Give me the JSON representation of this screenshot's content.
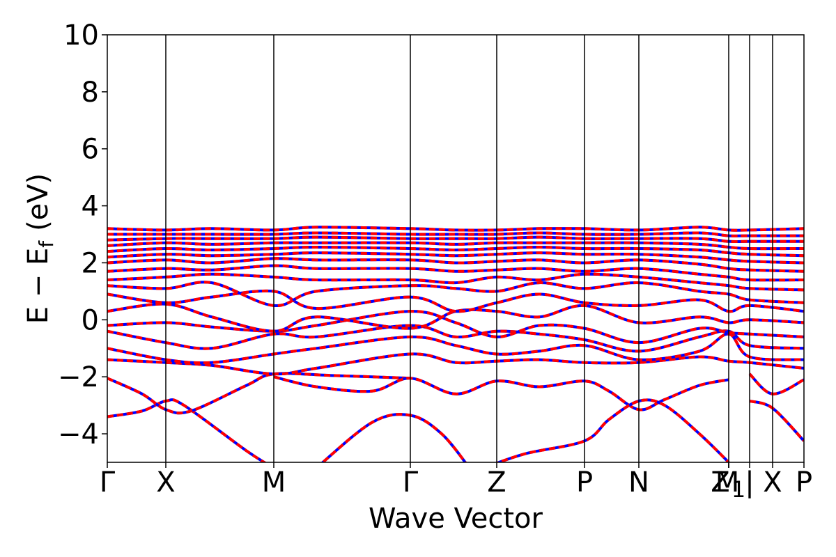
{
  "chart_data": {
    "type": "line",
    "title": "",
    "xlabel": "Wave Vector",
    "ylabel_main": "E − E",
    "ylabel_sub": "f",
    "ylabel_unit": "(eV)",
    "ylim": [
      -5,
      10
    ],
    "yticks": [
      -4,
      -2,
      0,
      2,
      4,
      6,
      8,
      10
    ],
    "ytick_labels": [
      "−4",
      "−2",
      "0",
      "2",
      "4",
      "6",
      "8",
      "10"
    ],
    "xlim": [
      0,
      1
    ],
    "kpoints": [
      {
        "label": "Γ",
        "x": 0.0
      },
      {
        "label": "X",
        "x": 0.084
      },
      {
        "label": "M",
        "x": 0.239
      },
      {
        "label": "Γ",
        "x": 0.435
      },
      {
        "label": "Z",
        "x": 0.559
      },
      {
        "label": "P",
        "x": 0.685
      },
      {
        "label": "N",
        "x": 0.763
      },
      {
        "label": "Z",
        "x": 0.892
      },
      {
        "label": "M",
        "x": 0.892
      },
      {
        "label": "1",
        "x": 0.892
      },
      {
        "label": "|",
        "x": 0.922
      },
      {
        "label": "X",
        "x": 0.955
      },
      {
        "label": "P",
        "x": 1.0
      }
    ],
    "series_colors": {
      "band": "#ff0000",
      "overlay": "#0000ff"
    },
    "series": [
      {
        "x": [
          0,
          0.05,
          0.084,
          0.11,
          0.2,
          0.239
        ],
        "values": [
          -3.4,
          -3.2,
          -2.85,
          -3.0,
          -4.6,
          -5.2
        ]
      },
      {
        "x": [
          0,
          0.05,
          0.084,
          0.12,
          0.2,
          0.239,
          0.32,
          0.435
        ],
        "values": [
          -2.05,
          -2.6,
          -3.15,
          -3.2,
          -2.3,
          -1.9,
          -1.95,
          -2.05
        ]
      },
      {
        "x": [
          0.239,
          0.3,
          0.38,
          0.435,
          0.5,
          0.559,
          0.62,
          0.685,
          0.72,
          0.763,
          0.8,
          0.85,
          0.892
        ],
        "values": [
          -2.0,
          -2.35,
          -2.5,
          -2.05,
          -2.6,
          -2.15,
          -2.35,
          -2.15,
          -2.5,
          -3.15,
          -2.8,
          -2.3,
          -2.1
        ]
      },
      {
        "x": [
          0.3,
          0.38,
          0.435,
          0.48,
          0.52
        ],
        "values": [
          -5.2,
          -3.6,
          -3.35,
          -4.0,
          -5.2
        ]
      },
      {
        "x": [
          0.54,
          0.6,
          0.685,
          0.72,
          0.763,
          0.8,
          0.85,
          0.892
        ],
        "values": [
          -5.2,
          -4.7,
          -4.25,
          -3.5,
          -2.85,
          -3.0,
          -4.0,
          -5.0
        ]
      },
      {
        "x": [
          0.922,
          0.955,
          1.0
        ],
        "values": [
          -2.85,
          -3.1,
          -4.25
        ]
      },
      {
        "x": [
          0.922,
          0.955,
          1.0
        ],
        "values": [
          -1.9,
          -2.6,
          -2.1
        ]
      },
      {
        "x": [
          0,
          0.084,
          0.15,
          0.239,
          0.3,
          0.435,
          0.5,
          0.559,
          0.62,
          0.685,
          0.763,
          0.85,
          0.892,
          0.922,
          1.0
        ],
        "values": [
          -1.4,
          -1.5,
          -1.6,
          -1.9,
          -1.7,
          -1.2,
          -1.5,
          -1.45,
          -1.4,
          -1.5,
          -1.5,
          -1.3,
          -1.45,
          -1.5,
          -1.7
        ]
      },
      {
        "x": [
          0,
          0.084,
          0.15,
          0.239,
          0.3,
          0.435,
          0.5,
          0.559,
          0.62,
          0.685,
          0.763,
          0.85,
          0.892,
          0.922,
          1.0
        ],
        "values": [
          -1.0,
          -1.4,
          -1.5,
          -1.2,
          -1.0,
          -0.6,
          -0.9,
          -1.2,
          -1.1,
          -0.9,
          -1.4,
          -1.1,
          -0.5,
          -1.3,
          -1.4
        ]
      },
      {
        "x": [
          0,
          0.084,
          0.15,
          0.239,
          0.3,
          0.435,
          0.5,
          0.559,
          0.62,
          0.685,
          0.763,
          0.85,
          0.892,
          0.922,
          1.0
        ],
        "values": [
          -0.4,
          -0.8,
          -1.0,
          -0.5,
          -0.6,
          -0.2,
          -0.6,
          -0.4,
          -0.5,
          -0.7,
          -1.1,
          -0.6,
          -0.4,
          -0.9,
          -1.0
        ]
      },
      {
        "x": [
          0,
          0.084,
          0.15,
          0.239,
          0.3,
          0.435,
          0.5,
          0.559,
          0.62,
          0.685,
          0.763,
          0.85,
          0.892,
          0.922,
          1.0
        ],
        "values": [
          -0.2,
          -0.1,
          -0.25,
          -0.4,
          -0.2,
          0.3,
          -0.1,
          -0.6,
          -0.2,
          -0.3,
          -0.8,
          -0.3,
          -0.45,
          -0.5,
          -0.6
        ]
      },
      {
        "x": [
          0,
          0.084,
          0.15,
          0.239,
          0.3,
          0.435,
          0.5,
          0.559,
          0.62,
          0.685,
          0.763,
          0.85,
          0.892,
          0.922,
          1.0
        ],
        "values": [
          0.3,
          0.55,
          0.1,
          -0.4,
          0.1,
          -0.3,
          0.3,
          0.3,
          0.1,
          0.5,
          -0.1,
          0.1,
          -0.1,
          0.0,
          -0.1
        ]
      },
      {
        "x": [
          0,
          0.084,
          0.15,
          0.239,
          0.3,
          0.435,
          0.5,
          0.559,
          0.62,
          0.685,
          0.763,
          0.85,
          0.892,
          0.922,
          1.0
        ],
        "values": [
          0.9,
          0.6,
          0.8,
          1.0,
          0.4,
          0.8,
          0.3,
          0.6,
          0.9,
          0.6,
          0.5,
          0.7,
          0.3,
          0.5,
          0.3
        ]
      },
      {
        "x": [
          0,
          0.084,
          0.15,
          0.239,
          0.3,
          0.435,
          0.5,
          0.559,
          0.62,
          0.685,
          0.763,
          0.85,
          0.892,
          0.922,
          1.0
        ],
        "values": [
          1.2,
          1.1,
          1.3,
          0.5,
          1.0,
          1.2,
          1.1,
          1.0,
          1.3,
          1.1,
          1.3,
          1.0,
          0.9,
          0.7,
          0.6
        ]
      },
      {
        "x": [
          0,
          0.084,
          0.15,
          0.239,
          0.3,
          0.435,
          0.5,
          0.559,
          0.62,
          0.685,
          0.763,
          0.85,
          0.892,
          0.922,
          1.0
        ],
        "values": [
          1.4,
          1.5,
          1.6,
          1.5,
          1.4,
          1.4,
          1.3,
          1.5,
          1.4,
          1.6,
          1.5,
          1.3,
          1.2,
          1.1,
          1.05
        ]
      },
      {
        "x": [
          0,
          0.084,
          0.15,
          0.239,
          0.3,
          0.435,
          0.5,
          0.559,
          0.62,
          0.685,
          0.763,
          0.85,
          0.892,
          0.922,
          1.0
        ],
        "values": [
          1.7,
          1.8,
          1.75,
          1.9,
          1.8,
          1.8,
          1.7,
          1.75,
          1.8,
          1.7,
          1.8,
          1.6,
          1.5,
          1.4,
          1.4
        ]
      },
      {
        "x": [
          0,
          0.084,
          0.15,
          0.239,
          0.3,
          0.435,
          0.5,
          0.559,
          0.62,
          0.685,
          0.763,
          0.85,
          0.892,
          0.922,
          1.0
        ],
        "values": [
          2.0,
          2.1,
          2.0,
          2.15,
          2.1,
          2.1,
          2.0,
          2.05,
          2.1,
          2.0,
          2.1,
          1.95,
          1.8,
          1.75,
          1.7
        ]
      },
      {
        "x": [
          0,
          0.084,
          0.15,
          0.239,
          0.3,
          0.435,
          0.5,
          0.559,
          0.62,
          0.685,
          0.763,
          0.85,
          0.892,
          0.922,
          1.0
        ],
        "values": [
          2.2,
          2.3,
          2.25,
          2.3,
          2.35,
          2.3,
          2.25,
          2.3,
          2.35,
          2.3,
          2.3,
          2.2,
          2.1,
          2.05,
          2.0
        ]
      },
      {
        "x": [
          0,
          0.084,
          0.15,
          0.239,
          0.3,
          0.435,
          0.5,
          0.559,
          0.62,
          0.685,
          0.763,
          0.85,
          0.892,
          0.922,
          1.0
        ],
        "values": [
          2.4,
          2.5,
          2.45,
          2.5,
          2.55,
          2.5,
          2.45,
          2.5,
          2.55,
          2.5,
          2.5,
          2.45,
          2.35,
          2.3,
          2.25
        ]
      },
      {
        "x": [
          0,
          0.084,
          0.15,
          0.239,
          0.3,
          0.435,
          0.5,
          0.559,
          0.62,
          0.685,
          0.763,
          0.85,
          0.892,
          0.922,
          1.0
        ],
        "values": [
          2.6,
          2.7,
          2.65,
          2.7,
          2.7,
          2.7,
          2.65,
          2.7,
          2.7,
          2.7,
          2.7,
          2.65,
          2.55,
          2.5,
          2.5
        ]
      },
      {
        "x": [
          0,
          0.084,
          0.15,
          0.239,
          0.3,
          0.435,
          0.5,
          0.559,
          0.62,
          0.685,
          0.763,
          0.85,
          0.892,
          0.922,
          1.0
        ],
        "values": [
          2.8,
          2.85,
          2.85,
          2.85,
          2.9,
          2.85,
          2.85,
          2.85,
          2.9,
          2.85,
          2.85,
          2.85,
          2.75,
          2.75,
          2.75
        ]
      },
      {
        "x": [
          0,
          0.084,
          0.15,
          0.239,
          0.3,
          0.435,
          0.5,
          0.559,
          0.62,
          0.685,
          0.763,
          0.85,
          0.892,
          0.922,
          1.0
        ],
        "values": [
          3.0,
          3.0,
          3.0,
          3.0,
          3.05,
          3.0,
          3.0,
          3.0,
          3.05,
          3.0,
          3.0,
          3.05,
          2.95,
          2.95,
          2.95
        ]
      },
      {
        "x": [
          0,
          0.084,
          0.15,
          0.239,
          0.3,
          0.435,
          0.5,
          0.559,
          0.62,
          0.685,
          0.763,
          0.85,
          0.892,
          0.922,
          1.0
        ],
        "values": [
          3.2,
          3.15,
          3.2,
          3.15,
          3.25,
          3.2,
          3.15,
          3.15,
          3.2,
          3.2,
          3.15,
          3.25,
          3.15,
          3.15,
          3.2
        ]
      }
    ]
  }
}
